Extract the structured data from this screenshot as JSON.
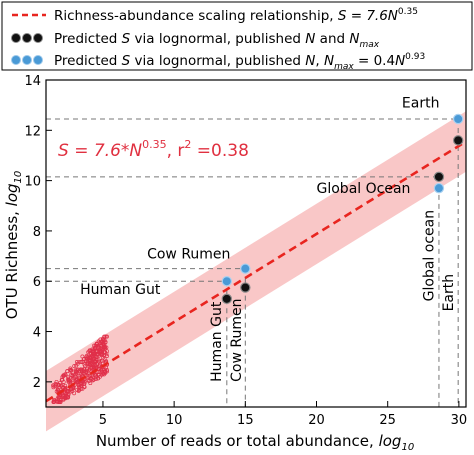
{
  "chart_data": {
    "type": "scatter",
    "xlabel": "Number of reads or total abundance, ",
    "xlabel_sub": "log",
    "xlabel_subsub": "10",
    "ylabel": "OTU Richness, ",
    "ylabel_sub": "log",
    "ylabel_subsub": "10",
    "xlim": [
      1,
      30.5
    ],
    "ylim": [
      1,
      14
    ],
    "xticks": [
      5,
      10,
      15,
      20,
      25,
      30
    ],
    "yticks": [
      2,
      4,
      6,
      8,
      10,
      12,
      14
    ],
    "legend": [
      {
        "kind": "line",
        "text": "Richness-abundance scaling relationship, ",
        "formula": "S = 7.6N",
        "exp": "0.35",
        "color": "#e8251f"
      },
      {
        "kind": "marker",
        "text": "Predicted ",
        "s": "S",
        "text2": " via lognormal, published ",
        "n": "N",
        "text3": " and ",
        "nmax": "N",
        "nmax_sub": "max",
        "color": "#111111"
      },
      {
        "kind": "marker",
        "text": "Predicted ",
        "s": "S",
        "text2": " via lognormal, published ",
        "n": "N",
        "text3": ", ",
        "nmax": "N",
        "nmax_sub": "max",
        "text4": " = 0.4",
        "n2": "N",
        "exp": "0.93",
        "color": "#4a9ad6"
      }
    ],
    "legend_position": "top",
    "annotation": {
      "text_main": "S = 7.6*N",
      "exp": "0.35",
      "text_r": ", r",
      "r_exp": "2",
      "text_end": " =0.38",
      "color": "#e03040"
    },
    "fit": {
      "a": 7.6,
      "b": 0.35,
      "band_halfwidth": 1.2,
      "color": "#e8251f",
      "band_color": "#f7b4b4"
    },
    "series": [
      {
        "name": "Predicted S via lognormal, published N and Nmax",
        "color": "#111111",
        "points": [
          [
            13.7,
            5.3
          ],
          [
            15.0,
            5.75
          ],
          [
            28.6,
            10.15
          ],
          [
            29.95,
            11.6
          ]
        ]
      },
      {
        "name": "Predicted S via lognormal, published N, Nmax = 0.4N^0.93",
        "color": "#4a9ad6",
        "points": [
          [
            13.7,
            6.0
          ],
          [
            15.0,
            6.5
          ],
          [
            28.6,
            9.7
          ],
          [
            29.95,
            12.45
          ]
        ]
      }
    ],
    "microbiome_cloud": {
      "x_range": [
        1.5,
        5.3
      ],
      "y_range": [
        1.2,
        3.8
      ],
      "color": "#e0304a"
    },
    "labels": [
      {
        "text": "Earth",
        "x": 26.0,
        "y": 12.9,
        "rotate": false
      },
      {
        "text": "Global Ocean",
        "x": 20.0,
        "y": 9.5,
        "rotate": false
      },
      {
        "text": "Cow Rumen",
        "x": 8.1,
        "y": 6.9,
        "rotate": false
      },
      {
        "text": "Human Gut",
        "x": 3.4,
        "y": 5.5,
        "rotate": false
      },
      {
        "text": "Human Gut",
        "x": 13.3,
        "y": 2.0,
        "rotate": true
      },
      {
        "text": "Cow Rumen",
        "x": 14.7,
        "y": 2.0,
        "rotate": true
      },
      {
        "text": "Global ocean",
        "x": 28.2,
        "y": 5.2,
        "rotate": true
      },
      {
        "text": "Earth",
        "x": 29.6,
        "y": 4.8,
        "rotate": true
      }
    ],
    "guides": [
      {
        "x": 29.95,
        "y": 12.45
      },
      {
        "x": 28.6,
        "y": 10.15
      },
      {
        "x": 15.0,
        "y": 6.5
      },
      {
        "x": 13.7,
        "y": 6.0
      }
    ]
  }
}
